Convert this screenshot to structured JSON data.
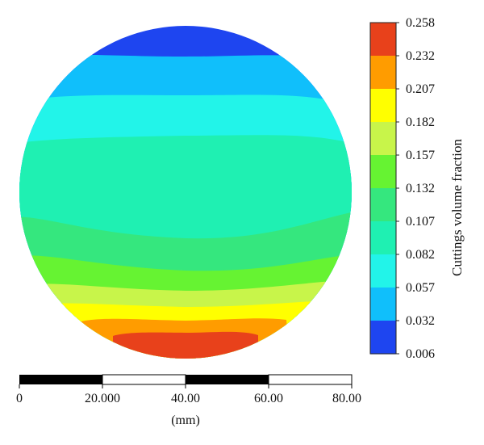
{
  "colorbar": {
    "title": "Cuttings volume fraction",
    "ticks": [
      "0.258",
      "0.232",
      "0.207",
      "0.182",
      "0.157",
      "0.132",
      "0.107",
      "0.082",
      "0.057",
      "0.032",
      "0.006"
    ],
    "colors": [
      "#e8411b",
      "#ff9c00",
      "#ffff00",
      "#c8f54a",
      "#66f332",
      "#35e77e",
      "#1ff0b2",
      "#22f4e9",
      "#10bffb",
      "#1e45f0"
    ]
  },
  "contour": {
    "colors_bottom_to_top": [
      "#e8411b",
      "#ff9c00",
      "#ffff00",
      "#c8f54a",
      "#66f332",
      "#35e77e",
      "#1ff0b2",
      "#22f4e9",
      "#10bffb",
      "#1e45f0"
    ]
  },
  "scale_bar": {
    "ticks": [
      "0",
      "20.000",
      "40.00",
      "60.00",
      "80.00"
    ],
    "unit": "(mm)"
  }
}
